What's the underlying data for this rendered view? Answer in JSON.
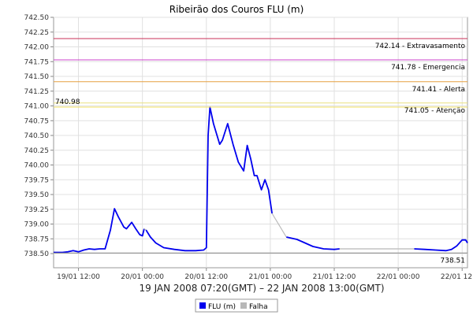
{
  "chart_data": {
    "type": "line",
    "title": "Ribeirão dos Couros FLU (m)",
    "xlabel": "19 JAN 2008 07:20(GMT) – 22 JAN 2008 13:00(GMT)",
    "ylabel": "",
    "x_range": [
      "19/01 07:20",
      "22/01 13:00"
    ],
    "ylim": [
      738.26,
      742.5
    ],
    "y_ticks": [
      "742.50",
      "742.25",
      "742.00",
      "741.75",
      "741.50",
      "741.25",
      "741.00",
      "740.75",
      "740.50",
      "740.25",
      "740.00",
      "739.75",
      "739.50",
      "739.25",
      "739.00",
      "738.75",
      "738.50"
    ],
    "x_ticks": [
      "19/01 12:00",
      "20/01 00:00",
      "20/01 12:00",
      "21/01 00:00",
      "21/01 12:00",
      "22/01 00:00",
      "22/01 12:00"
    ],
    "grid": true,
    "legend_position": "bottom",
    "thresholds": [
      {
        "label": "742.14 - Extravasamento",
        "value": 742.14,
        "color": "#c8325a"
      },
      {
        "label": "741.78 - Emergencia",
        "value": 741.78,
        "color": "#cc44cc"
      },
      {
        "label": "741.41 - Alerta",
        "value": 741.41,
        "color": "#e6a040"
      },
      {
        "label": "741.05 - Atenção",
        "value": 741.05,
        "color": "#e8e080"
      }
    ],
    "annotations": [
      {
        "text": "740.98",
        "value": 740.98,
        "position": "left"
      },
      {
        "text": "738.51",
        "value": 738.51,
        "position": "right"
      }
    ],
    "series": [
      {
        "name": "FLU (m)",
        "color": "#0000ee",
        "segments": [
          [
            [
              "19/01 07:20",
              738.52
            ],
            [
              "19/01 09:00",
              738.52
            ],
            [
              "19/01 10:00",
              738.53
            ],
            [
              "19/01 11:00",
              738.55
            ],
            [
              "19/01 12:00",
              738.53
            ],
            [
              "19/01 13:00",
              738.56
            ],
            [
              "19/01 14:00",
              738.58
            ],
            [
              "19/01 15:00",
              738.57
            ],
            [
              "19/01 16:00",
              738.58
            ],
            [
              "19/01 17:00",
              738.58
            ],
            [
              "19/01 18:00",
              738.9
            ],
            [
              "19/01 18:45",
              739.26
            ],
            [
              "19/01 19:30",
              739.12
            ],
            [
              "19/01 20:30",
              738.95
            ],
            [
              "19/01 21:00",
              738.92
            ],
            [
              "19/01 22:00",
              739.03
            ],
            [
              "19/01 22:45",
              738.92
            ],
            [
              "19/01 23:30",
              738.82
            ],
            [
              "20/01 00:00",
              738.8
            ],
            [
              "20/01 00:20",
              738.92
            ]
          ],
          [
            [
              "20/01 00:40",
              738.9
            ],
            [
              "20/01 01:30",
              738.78
            ],
            [
              "20/01 02:30",
              738.68
            ],
            [
              "20/01 04:00",
              738.6
            ],
            [
              "20/01 06:00",
              738.57
            ],
            [
              "20/01 08:00",
              738.55
            ],
            [
              "20/01 10:00",
              738.55
            ],
            [
              "20/01 11:30",
              738.56
            ],
            [
              "20/01 12:00",
              738.6
            ],
            [
              "20/01 12:20",
              740.5
            ],
            [
              "20/01 12:40",
              740.98
            ],
            [
              "20/01 13:20",
              740.7
            ],
            [
              "20/01 14:30",
              740.35
            ],
            [
              "20/01 15:00",
              740.42
            ],
            [
              "20/01 16:00",
              740.7
            ],
            [
              "20/01 17:00",
              740.35
            ],
            [
              "20/01 18:00",
              740.05
            ],
            [
              "20/01 19:00",
              739.9
            ],
            [
              "20/01 19:40",
              740.33
            ],
            [
              "20/01 20:20",
              740.1
            ],
            [
              "20/01 21:00",
              739.82
            ],
            [
              "20/01 21:30",
              739.82
            ],
            [
              "20/01 22:20",
              739.58
            ],
            [
              "20/01 23:00",
              739.75
            ],
            [
              "20/01 23:40",
              739.58
            ],
            [
              "21/01 00:20",
              739.18
            ]
          ],
          [
            [
              "21/01 03:00",
              738.78
            ],
            [
              "21/01 04:00",
              738.76
            ],
            [
              "21/01 05:00",
              738.74
            ],
            [
              "21/01 06:00",
              738.7
            ],
            [
              "21/01 08:00",
              738.62
            ],
            [
              "21/01 10:00",
              738.58
            ],
            [
              "21/01 12:00",
              738.57
            ],
            [
              "21/01 13:00",
              738.58
            ]
          ],
          [
            [
              "22/01 03:00",
              738.58
            ],
            [
              "22/01 05:00",
              738.57
            ],
            [
              "22/01 07:00",
              738.56
            ],
            [
              "22/01 09:00",
              738.55
            ],
            [
              "22/01 10:00",
              738.57
            ],
            [
              "22/01 11:00",
              738.63
            ],
            [
              "22/01 12:00",
              738.73
            ],
            [
              "22/01 12:40",
              738.73
            ],
            [
              "22/01 13:00",
              738.68
            ]
          ]
        ]
      },
      {
        "name": "Falha",
        "color": "#b8b8b8",
        "segments": [
          [
            [
              "20/01 00:20",
              738.92
            ],
            [
              "20/01 00:40",
              738.9
            ]
          ],
          [
            [
              "21/01 00:20",
              739.18
            ],
            [
              "21/01 03:00",
              738.78
            ]
          ],
          [
            [
              "21/01 13:00",
              738.58
            ],
            [
              "22/01 03:00",
              738.58
            ]
          ]
        ]
      }
    ]
  }
}
